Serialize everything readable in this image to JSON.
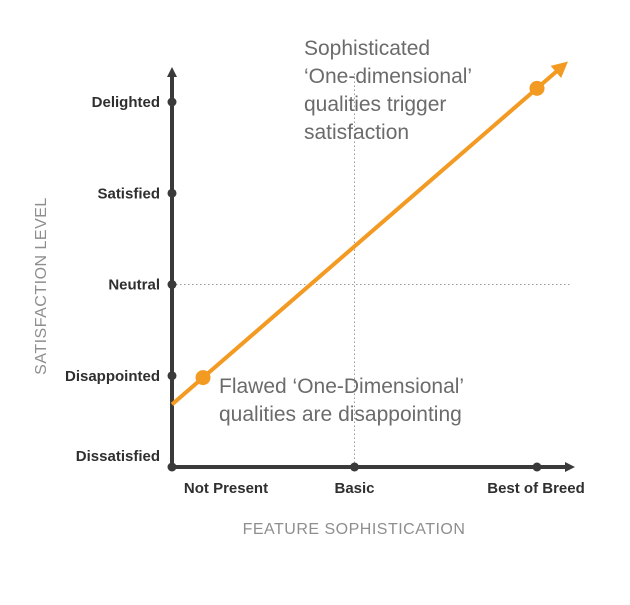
{
  "chart_data": {
    "type": "line",
    "xlabel": "FEATURE SOPHISTICATION",
    "ylabel": "SATISFACTION LEVEL",
    "x_categories": [
      "Not Present",
      "Basic",
      "Best of Breed"
    ],
    "y_categories": [
      "Dissatisfied",
      "Disappointed",
      "Neutral",
      "Satisfied",
      "Delighted"
    ],
    "xlim": [
      0,
      2
    ],
    "ylim": [
      0,
      4
    ],
    "series": [
      {
        "values": [
          {
            "x": 0.17,
            "y": 0.98
          },
          {
            "x": 2.0,
            "y": 4.15
          }
        ],
        "color": "#f39a22"
      }
    ],
    "highlight_points": [
      {
        "x": 0.17,
        "y": 0.98
      },
      {
        "x": 2.0,
        "y": 4.15
      }
    ],
    "reference_lines": [
      {
        "orientation": "horizontal",
        "at": "Neutral",
        "style": "dotted"
      },
      {
        "orientation": "vertical",
        "at": "Basic",
        "style": "dotted"
      }
    ],
    "annotations": [
      {
        "name": "sophisticated-annotation",
        "lines": [
          "Sophisticated",
          "‘One-dimensional’",
          "qualities trigger",
          "satisfaction"
        ]
      },
      {
        "name": "flawed-annotation",
        "lines": [
          "Flawed ‘One-Dimensional’",
          "qualities are disappointing"
        ]
      }
    ],
    "grid": false,
    "legend": "none",
    "colors": {
      "axis": "#3a3a3a",
      "line": "#f39a22",
      "reference": "#9a9a9a"
    }
  }
}
